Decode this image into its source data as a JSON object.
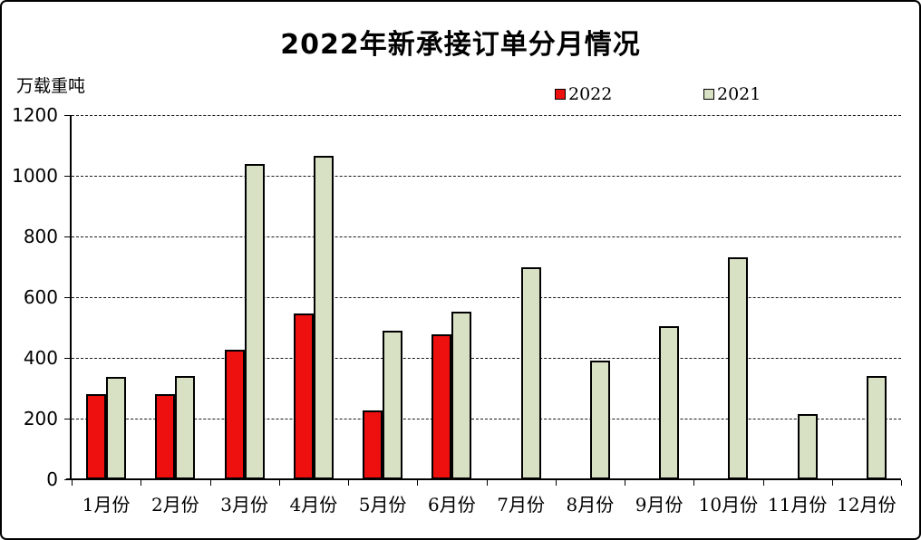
{
  "window": {
    "background": "#ffffff",
    "border_color": "#000000"
  },
  "chart_data": {
    "type": "bar",
    "title": "2022年新承接订单分月情况",
    "unit_label": "万载重吨",
    "categories": [
      "1月份",
      "2月份",
      "3月份",
      "4月份",
      "5月份",
      "6月份",
      "7月份",
      "8月份",
      "9月份",
      "10月份",
      "11月份",
      "12月份"
    ],
    "series": [
      {
        "name": "2022",
        "color": "#ee0f0f",
        "values": [
          282,
          282,
          428,
          547,
          227,
          477,
          null,
          null,
          null,
          null,
          null,
          null
        ]
      },
      {
        "name": "2021",
        "color": "#d9e1c4",
        "values": [
          338,
          341,
          1038,
          1067,
          489,
          551,
          699,
          390,
          503,
          731,
          214,
          340
        ]
      }
    ],
    "yticks": [
      0,
      200,
      400,
      600,
      800,
      1000,
      1200
    ],
    "ylim": [
      0,
      1200
    ],
    "xlabel": "",
    "ylabel": "",
    "grid": "horizontal-dashed",
    "legend_position": "top",
    "gridline_color": "#1a1a1a",
    "bar_border_color": "#000000"
  }
}
